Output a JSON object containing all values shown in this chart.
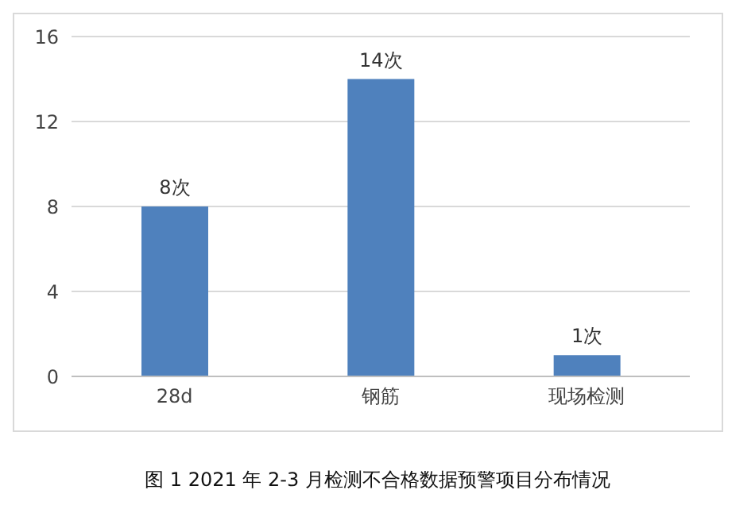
{
  "chart_data": {
    "type": "bar",
    "title": "图 1 2021 年 2-3 月检测不合格数据预警项目分布情况",
    "categories": [
      "28d",
      "钢筋",
      "现场检测"
    ],
    "values": [
      8,
      14,
      1
    ],
    "color": "#4f81bd",
    "value_labels": [
      "8次",
      "14次",
      "1次"
    ],
    "ylim": [
      0,
      16
    ],
    "yticks": [
      0,
      4,
      8,
      12,
      16
    ],
    "grid": "y"
  }
}
